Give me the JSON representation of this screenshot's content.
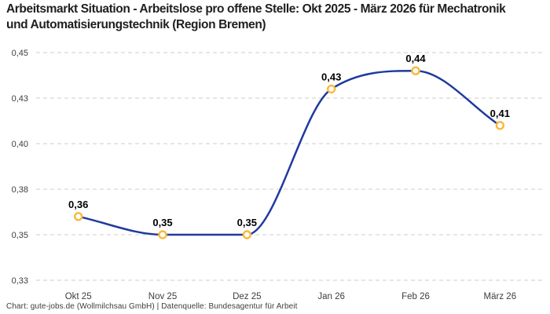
{
  "header": {
    "title": "Arbeitsmarkt Situation - Arbeitslose pro offene Stelle: Okt 2025 - März 2026 für Mechatronik und Automatisierungstechnik (Region Bremen)"
  },
  "footer": {
    "credit": "Chart: gute-jobs.de (Wollmilchsau GmbH) | Datenquelle: Bundesagentur für Arbeit"
  },
  "chart_data": {
    "type": "line",
    "title": "Arbeitsmarkt Situation - Arbeitslose pro offene Stelle: Okt 2025 - März 2026 für Mechatronik und Automatisierungstechnik (Region Bremen)",
    "categories": [
      "Okt 25",
      "Nov 25",
      "Dez 25",
      "Jan 26",
      "Feb 26",
      "März 26"
    ],
    "values": [
      0.36,
      0.35,
      0.35,
      0.43,
      0.44,
      0.41
    ],
    "point_labels": [
      "0,36",
      "0,35",
      "0,35",
      "0,43",
      "0,44",
      "0,41"
    ],
    "yticks": [
      {
        "value": 0.45,
        "label": "0,45"
      },
      {
        "value": 0.425,
        "label": "0,43"
      },
      {
        "value": 0.4,
        "label": "0,40"
      },
      {
        "value": 0.375,
        "label": "0,38"
      },
      {
        "value": 0.35,
        "label": "0,35"
      },
      {
        "value": 0.325,
        "label": "0,33"
      }
    ],
    "ylim": [
      0.325,
      0.45
    ],
    "xlabel": "",
    "ylabel": "",
    "grid": "horizontal-dashed",
    "legend": "none",
    "line_shape": "spline",
    "colors": {
      "line": "#1f3a9e",
      "marker_stroke": "#f9b93a",
      "marker_fill": "#ffffff",
      "grid": "#cccccc",
      "axis_text": "#3d3d3d",
      "point_label_text": "#000000",
      "title_text": "#1f1f1f",
      "background": "#ffffff"
    }
  }
}
